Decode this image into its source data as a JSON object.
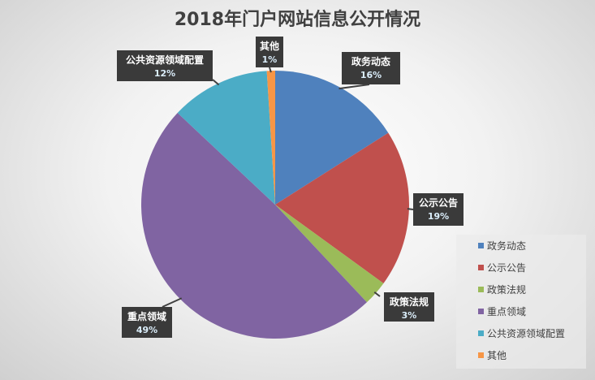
{
  "chart_data": {
    "type": "pie",
    "title": "2018年门户网站信息公开情况",
    "categories": [
      "政务动态",
      "公示公告",
      "政策法规",
      "重点领域",
      "公共资源领域配置",
      "其他"
    ],
    "values": [
      16,
      19,
      3,
      49,
      12,
      1
    ],
    "labels": [
      "16%",
      "19%",
      "3%",
      "49%",
      "12%",
      "1%"
    ],
    "colors": [
      "#4f81bd",
      "#c0504d",
      "#9bbb59",
      "#8064a2",
      "#4bacc6",
      "#f79646"
    ],
    "legend_position": "right-bottom",
    "start_angle": "top, clockwise"
  }
}
